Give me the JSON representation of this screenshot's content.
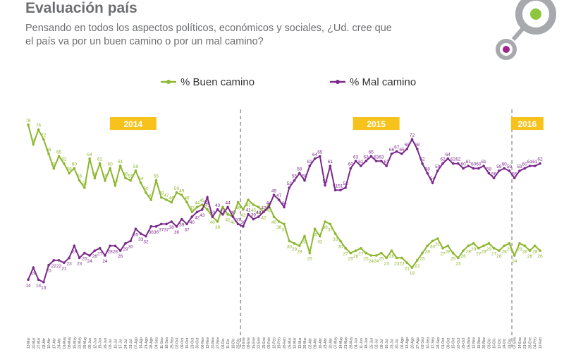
{
  "title": "Evaluación país",
  "subtitle": [
    "Pensando en todos los aspectos políticos, económicos y sociales, ¿Ud. cree que",
    "el país va por un buen camino o por un mal camino?"
  ],
  "chart_data": {
    "type": "line",
    "categories": [
      "13-Mar",
      "20-Mar",
      "27-Mar",
      "03-Abr",
      "10-Abr",
      "17-Abr",
      "24-Abr",
      "01-May",
      "08-May",
      "15-May",
      "22-May",
      "29-May",
      "05-Jun",
      "12-Jun",
      "19-Jun",
      "26-Jun",
      "03-Jul",
      "10-Jul",
      "17-Jul",
      "24-Jul",
      "31-Jul",
      "07-Ago",
      "14-Ago",
      "21-Ago",
      "28-Ago",
      "04-Sep",
      "11-Sep",
      "18-Sep",
      "25-Sep",
      "02-Oct",
      "09-Oct",
      "16-Oct",
      "23-Oct",
      "30-Oct",
      "06-Nov",
      "13-Nov",
      "20-Nov",
      "27-Nov",
      "04-Dic",
      "11-Dic",
      "18-Dic",
      "25-Dic",
      "01-Ene",
      "08-Ene",
      "15-Ene",
      "22-Ene",
      "29-Ene",
      "05-Feb",
      "12-Feb",
      "19-Feb",
      "26-Feb",
      "05-Mar",
      "12-Mar",
      "19-Mar",
      "26-Mar",
      "02-Abr",
      "09-Abr",
      "16-Abr",
      "23-Abr",
      "30-Abr",
      "07-May",
      "14-May",
      "21-May",
      "28-May",
      "04-Jun",
      "11-Jun",
      "18-Jun",
      "25-Jun",
      "02-Jul",
      "09-Jul",
      "16-Jul",
      "23-Jul",
      "30-Jul",
      "06-Ago",
      "13-Ago",
      "20-Ago",
      "27-Ago",
      "03-Sep",
      "10-Sep",
      "17-Sep",
      "24-Sep",
      "01-Oct",
      "08-Oct",
      "15-Oct",
      "22-Oct",
      "29-Oct",
      "05-Nov",
      "12-Nov",
      "19-Nov",
      "26-Nov",
      "03-Dic",
      "10-Dic",
      "17-Dic",
      "24-Dic",
      "31-Dic",
      "07-Ene",
      "14-Ene",
      "21-Ene",
      "28-Ene",
      "04-Feb",
      "12-Feb"
    ],
    "series": [
      {
        "name": "% Buen camino",
        "color": "#8db72e",
        "values": [
          78,
          70,
          76,
          72,
          66,
          60,
          65,
          62,
          58,
          60,
          55,
          52,
          64,
          56,
          62,
          55,
          60,
          53,
          61,
          56,
          55,
          59,
          54,
          50,
          47,
          55,
          48,
          47,
          46,
          50,
          49,
          46,
          42,
          44,
          45,
          43,
          40,
          38,
          44,
          41,
          40,
          46,
          43,
          47,
          45,
          44,
          42,
          45,
          40,
          38,
          37,
          30,
          29,
          28,
          32,
          25,
          35,
          32,
          38,
          37,
          33,
          30,
          27,
          25,
          26,
          27,
          25,
          24,
          24,
          25,
          23,
          26,
          23,
          23,
          21,
          19,
          22,
          25,
          28,
          30,
          31,
          27,
          28,
          25,
          23,
          26,
          28,
          29,
          27,
          28,
          29,
          27,
          26,
          28,
          29,
          24,
          29,
          28,
          26,
          28,
          26
        ]
      },
      {
        "name": "% Mal camino",
        "color": "#7b2a8c",
        "values": [
          14,
          19,
          14,
          13,
          20,
          22,
          22,
          21,
          23,
          28,
          23,
          25,
          24,
          26,
          27,
          24,
          28,
          28,
          26,
          29,
          30,
          35,
          33,
          32,
          36,
          36,
          37,
          37,
          38,
          36,
          39,
          37,
          40,
          42,
          43,
          48,
          40,
          43,
          41,
          44,
          40,
          37,
          36,
          41,
          39,
          40,
          42,
          44,
          49,
          47,
          44,
          52,
          55,
          58,
          55,
          61,
          64,
          65,
          53,
          61,
          51,
          51,
          52,
          60,
          63,
          61,
          63,
          65,
          63,
          63,
          61,
          66,
          67,
          66,
          68,
          72,
          68,
          62,
          58,
          54,
          59,
          62,
          64,
          62,
          62,
          60,
          61,
          60,
          60,
          61,
          58,
          56,
          59,
          60,
          59,
          56,
          59,
          60,
          61,
          61,
          62
        ]
      }
    ],
    "ylim": [
      10,
      80
    ],
    "years": [
      {
        "label": "2014",
        "index": 0
      },
      {
        "label": "2015",
        "index": 42
      },
      {
        "label": "2016",
        "index": 95
      }
    ]
  }
}
